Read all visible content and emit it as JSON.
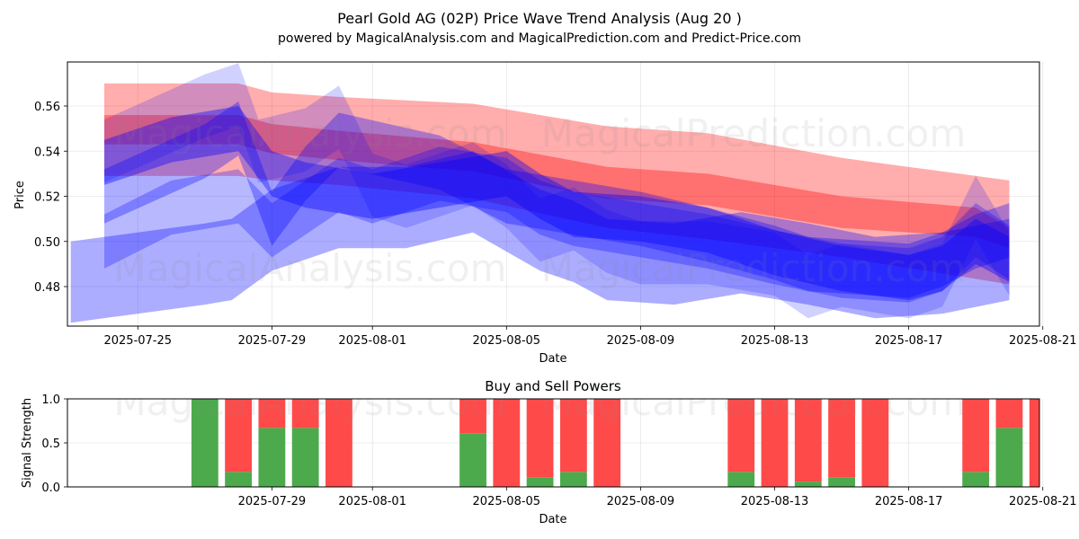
{
  "title": "Pearl Gold AG (02P) Price Wave Trend Analysis (Aug 20 )",
  "subtitle": "powered by MagicalAnalysis.com and MagicalPrediction.com and Predict-Price.com",
  "watermarks": [
    "MagicalAnalysis.com",
    "MagicalPrediction.com",
    "MagicalAnalysis.com",
    "MagicalPrediction.com",
    "MagicalAnalysis.com",
    "MagicalPrediction.com"
  ],
  "colors": {
    "red": "#ff0000",
    "blue": "#0000ff",
    "buy": "#4caa4c",
    "sell": "#ff4a4a"
  },
  "chart_data": [
    {
      "type": "area",
      "title": "",
      "xlabel": "Date",
      "ylabel": "Price",
      "xlim_day_offset": [
        -1.1,
        27.9
      ],
      "day_zero": "2025-07-24",
      "ylim": [
        0.4625,
        0.5795
      ],
      "x_tick_labels": [
        "2025-07-25",
        "2025-07-29",
        "2025-08-01",
        "2025-08-05",
        "2025-08-09",
        "2025-08-13",
        "2025-08-17",
        "2025-08-21"
      ],
      "x_tick_day_offsets": [
        1,
        5,
        8,
        12,
        16,
        20,
        24,
        28
      ],
      "y_tick_labels": [
        "0.48",
        "0.50",
        "0.52",
        "0.54",
        "0.56"
      ],
      "y_tick_values": [
        0.48,
        0.5,
        0.52,
        0.54,
        0.56
      ],
      "red_bands": [
        {
          "x": [
            0,
            4,
            5,
            7,
            11,
            15,
            18,
            22,
            27
          ],
          "upper": [
            0.57,
            0.57,
            0.566,
            0.564,
            0.561,
            0.551,
            0.548,
            0.537,
            0.527
          ],
          "lower": [
            0.529,
            0.529,
            0.527,
            0.525,
            0.519,
            0.506,
            0.501,
            0.493,
            0.481
          ],
          "opacity": 0.32
        },
        {
          "x": [
            0,
            4,
            5,
            7,
            11,
            15,
            18,
            22,
            26,
            27
          ],
          "upper": [
            0.556,
            0.556,
            0.552,
            0.549,
            0.544,
            0.533,
            0.53,
            0.52,
            0.515,
            0.506
          ],
          "lower": [
            0.543,
            0.543,
            0.539,
            0.536,
            0.531,
            0.519,
            0.516,
            0.506,
            0.502,
            0.497
          ],
          "opacity": 0.35
        }
      ],
      "blue_bands": [
        {
          "x": [
            0,
            3,
            4,
            5,
            6,
            7,
            10,
            12,
            14,
            16,
            18,
            20,
            21,
            23,
            24,
            25,
            26,
            27
          ],
          "center": [
            0.52,
            0.54,
            0.55,
            0.51,
            0.53,
            0.545,
            0.535,
            0.52,
            0.515,
            0.51,
            0.503,
            0.495,
            0.49,
            0.488,
            0.487,
            0.492,
            0.5,
            0.505
          ],
          "width": 0.012,
          "opacity": 0.32
        },
        {
          "x": [
            0,
            2,
            4,
            5,
            6,
            7,
            8,
            10,
            12,
            13,
            14,
            16,
            18,
            20,
            22,
            24,
            25,
            26,
            27
          ],
          "center": [
            0.5,
            0.515,
            0.52,
            0.505,
            0.515,
            0.525,
            0.52,
            0.53,
            0.525,
            0.515,
            0.51,
            0.505,
            0.5,
            0.493,
            0.487,
            0.485,
            0.49,
            0.505,
            0.495
          ],
          "width": 0.012,
          "opacity": 0.28
        },
        {
          "x": [
            0,
            3,
            4,
            4.6,
            6,
            7,
            8,
            9,
            11,
            12,
            13,
            14,
            15,
            16,
            18,
            20,
            21,
            22,
            24,
            25,
            26,
            27
          ],
          "center": [
            0.54,
            0.56,
            0.565,
            0.54,
            0.545,
            0.555,
            0.525,
            0.52,
            0.53,
            0.52,
            0.505,
            0.51,
            0.5,
            0.495,
            0.495,
            0.49,
            0.48,
            0.485,
            0.48,
            0.485,
            0.515,
            0.49
          ],
          "width": 0.014,
          "opacity": 0.18
        },
        {
          "x": [
            -1,
            3,
            3.8,
            5,
            6,
            7,
            9,
            11,
            13,
            14,
            15,
            17,
            19,
            21,
            23,
            25,
            27
          ],
          "center": [
            0.482,
            0.49,
            0.492,
            0.505,
            0.51,
            0.515,
            0.515,
            0.522,
            0.505,
            0.5,
            0.492,
            0.49,
            0.495,
            0.49,
            0.484,
            0.486,
            0.492
          ],
          "width": 0.018,
          "opacity": 0.32
        },
        {
          "x": [
            0,
            2,
            4,
            5,
            6,
            8,
            10,
            12,
            13,
            14,
            16,
            18,
            20,
            22,
            23,
            24,
            25,
            26,
            27
          ],
          "center": [
            0.535,
            0.545,
            0.55,
            0.53,
            0.525,
            0.52,
            0.525,
            0.53,
            0.52,
            0.512,
            0.51,
            0.505,
            0.495,
            0.488,
            0.486,
            0.484,
            0.488,
            0.5,
            0.492
          ],
          "width": 0.01,
          "opacity": 0.38
        }
      ]
    },
    {
      "type": "bar",
      "title": "Buy and Sell Powers",
      "xlabel": "Date",
      "ylabel": "Signal Strength",
      "xlim_day_offset": [
        -1.1,
        27.9
      ],
      "ylim": [
        0,
        1
      ],
      "x_tick_labels": [
        "2025-07-29",
        "2025-08-01",
        "2025-08-05",
        "2025-08-09",
        "2025-08-13",
        "2025-08-17",
        "2025-08-21"
      ],
      "x_tick_day_offsets": [
        5,
        8,
        12,
        16,
        20,
        24,
        28
      ],
      "y_tick_labels": [
        "0.0",
        "0.5",
        "1.0"
      ],
      "y_tick_values": [
        0,
        0.5,
        1.0
      ],
      "day_offsets": [
        3,
        4,
        5,
        6,
        7,
        11,
        12,
        13,
        14,
        15,
        19,
        20,
        21,
        22,
        23,
        26,
        27,
        28
      ],
      "buy": [
        1.0,
        0.17,
        0.67,
        0.67,
        0.0,
        0.61,
        0.0,
        0.11,
        0.17,
        0.0,
        0.17,
        0.0,
        0.06,
        0.11,
        0.0,
        0.17,
        0.67,
        0.0
      ],
      "sell": [
        0.0,
        0.83,
        0.33,
        0.33,
        1.0,
        0.39,
        1.0,
        0.89,
        0.83,
        1.0,
        0.83,
        1.0,
        0.94,
        0.89,
        1.0,
        0.83,
        0.33,
        1.0
      ]
    }
  ]
}
